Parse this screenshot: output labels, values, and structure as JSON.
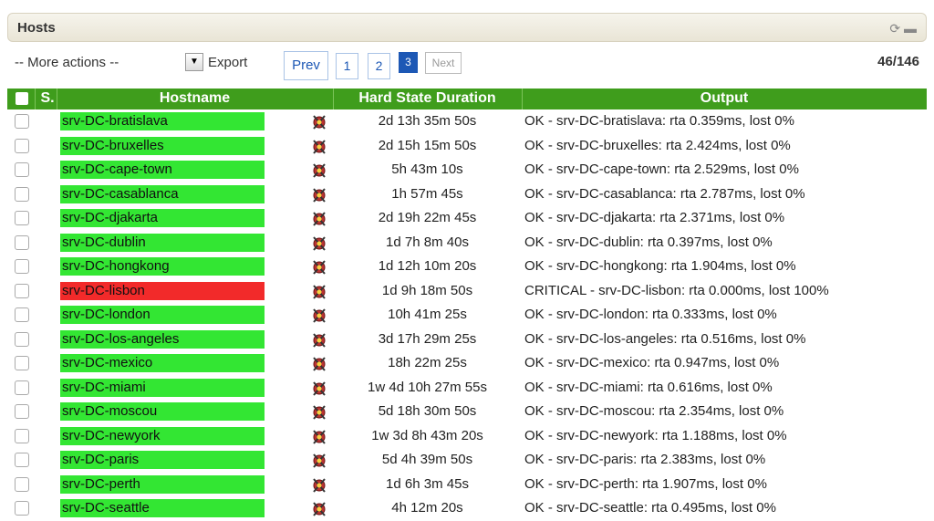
{
  "header": {
    "title": "Hosts"
  },
  "toolbar": {
    "actions": "-- More actions --",
    "export": "Export",
    "prev": "Prev",
    "pages": [
      "1",
      "2",
      "3"
    ],
    "next": "Next",
    "count": "46/146"
  },
  "table": {
    "columns": [
      "S.",
      "Hostname",
      "Hard State Duration",
      "Output"
    ],
    "rows": [
      {
        "hostname": "srv-DC-bratislava",
        "duration": "2d 13h 35m 50s",
        "output": "OK - srv-DC-bratislava: rta 0.359ms, lost 0%",
        "color": "#33e633"
      },
      {
        "hostname": "srv-DC-bruxelles",
        "duration": "2d 15h 15m 50s",
        "output": "OK - srv-DC-bruxelles: rta 2.424ms, lost 0%",
        "color": "#33e633"
      },
      {
        "hostname": "srv-DC-cape-town",
        "duration": "5h 43m 10s",
        "output": "OK - srv-DC-cape-town: rta 2.529ms, lost 0%",
        "color": "#33e633"
      },
      {
        "hostname": "srv-DC-casablanca",
        "duration": "1h 57m 45s",
        "output": "OK - srv-DC-casablanca: rta 2.787ms, lost 0%",
        "color": "#33e633"
      },
      {
        "hostname": "srv-DC-djakarta",
        "duration": "2d 19h 22m 45s",
        "output": "OK - srv-DC-djakarta: rta 2.371ms, lost 0%",
        "color": "#33e633"
      },
      {
        "hostname": "srv-DC-dublin",
        "duration": "1d 7h 8m 40s",
        "output": "OK - srv-DC-dublin: rta 0.397ms, lost 0%",
        "color": "#33e633"
      },
      {
        "hostname": "srv-DC-hongkong",
        "duration": "1d 12h 10m 20s",
        "output": "OK - srv-DC-hongkong: rta 1.904ms, lost 0%",
        "color": "#33e633"
      },
      {
        "hostname": "srv-DC-lisbon",
        "duration": "1d 9h 18m 50s",
        "output": "CRITICAL - srv-DC-lisbon: rta 0.000ms, lost 100%",
        "color": "#f22a2a"
      },
      {
        "hostname": "srv-DC-london",
        "duration": "10h 41m 25s",
        "output": "OK - srv-DC-london: rta 0.333ms, lost 0%",
        "color": "#33e633"
      },
      {
        "hostname": "srv-DC-los-angeles",
        "duration": "3d 17h 29m 25s",
        "output": "OK - srv-DC-los-angeles: rta 0.516ms, lost 0%",
        "color": "#33e633"
      },
      {
        "hostname": "srv-DC-mexico",
        "duration": "18h 22m 25s",
        "output": "OK - srv-DC-mexico: rta 0.947ms, lost 0%",
        "color": "#33e633"
      },
      {
        "hostname": "srv-DC-miami",
        "duration": "1w 4d 10h 27m 55s",
        "output": "OK - srv-DC-miami: rta 0.616ms, lost 0%",
        "color": "#33e633"
      },
      {
        "hostname": "srv-DC-moscou",
        "duration": "5d 18h 30m 50s",
        "output": "OK - srv-DC-moscou: rta 2.354ms, lost 0%",
        "color": "#33e633"
      },
      {
        "hostname": "srv-DC-newyork",
        "duration": "1w 3d 8h 43m 20s",
        "output": "OK - srv-DC-newyork: rta 1.188ms, lost 0%",
        "color": "#33e633"
      },
      {
        "hostname": "srv-DC-paris",
        "duration": "5d 4h 39m 50s",
        "output": "OK - srv-DC-paris: rta 2.383ms, lost 0%",
        "color": "#33e633"
      },
      {
        "hostname": "srv-DC-perth",
        "duration": "1d 6h 3m 45s",
        "output": "OK - srv-DC-perth: rta 1.907ms, lost 0%",
        "color": "#33e633"
      },
      {
        "hostname": "srv-DC-seattle",
        "duration": "4h 12m 20s",
        "output": "OK - srv-DC-seattle: rta 0.495ms, lost 0%",
        "color": "#33e633"
      }
    ]
  }
}
